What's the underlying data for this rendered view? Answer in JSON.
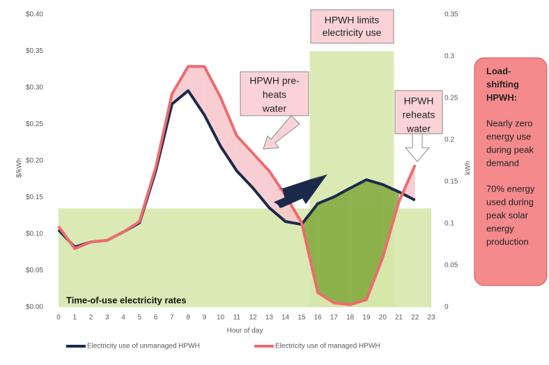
{
  "chart_data": {
    "type": "line",
    "x": [
      0,
      1,
      2,
      3,
      4,
      5,
      6,
      7,
      8,
      9,
      10,
      11,
      12,
      13,
      14,
      15,
      16,
      17,
      18,
      19,
      20,
      21,
      22
    ],
    "xlabel": "Hour of day",
    "xlim": [
      0,
      23
    ],
    "xticks": [
      0,
      1,
      2,
      3,
      4,
      5,
      6,
      7,
      8,
      9,
      10,
      11,
      12,
      13,
      14,
      15,
      16,
      17,
      18,
      19,
      20,
      21,
      22,
      23
    ],
    "ylabel": "$/kWh",
    "ylim": [
      0,
      0.4
    ],
    "yticks": [
      {
        "value": 0,
        "label": "$0.00"
      },
      {
        "value": 0.05,
        "label": "$0.05"
      },
      {
        "value": 0.1,
        "label": "$0.10"
      },
      {
        "value": 0.15,
        "label": "$0.15"
      },
      {
        "value": 0.2,
        "label": "$0.20"
      },
      {
        "value": 0.25,
        "label": "$0.25"
      },
      {
        "value": 0.3,
        "label": "$0.30"
      },
      {
        "value": 0.35,
        "label": "$0.35"
      },
      {
        "value": 0.4,
        "label": "$0.40"
      }
    ],
    "y2label": "kWh",
    "y2lim": [
      0,
      0.35
    ],
    "y2ticks": [
      0,
      0.05,
      0.1,
      0.15,
      0.2,
      0.25,
      0.3,
      0.35
    ],
    "rates_label": "Time-of-use electricity rates",
    "rates_color": "#d5e6a8",
    "rates": [
      {
        "x": [
          0,
          23
        ],
        "value": 0.135
      },
      {
        "x": [
          15.5,
          20.7
        ],
        "value": 0.35
      }
    ],
    "series": [
      {
        "name": "Electricity use of unmanaged HPWH",
        "color": "#1b2a4a",
        "axis": "y2",
        "values": [
          0.0925,
          0.072,
          0.078,
          0.08,
          0.09,
          0.101,
          0.163,
          0.243,
          0.259,
          0.23,
          0.1925,
          0.163,
          0.1425,
          0.119,
          0.1025,
          0.099,
          0.124,
          0.132,
          0.1425,
          0.1525,
          0.1467,
          0.138,
          0.128
        ]
      },
      {
        "name": "Electricity use of managed HPWH",
        "color": "#ee6b6e",
        "axis": "y2",
        "values": [
          0.0967,
          0.07,
          0.078,
          0.08,
          0.09,
          0.1025,
          0.1675,
          0.255,
          0.288,
          0.288,
          0.251,
          0.205,
          0.184,
          0.163,
          0.134,
          0.101,
          0.0175,
          0.005,
          0.003,
          0.009,
          0.059,
          0.126,
          0.17
        ]
      }
    ],
    "annotations": [
      {
        "lines": [
          "HPWH limits",
          "electricity use"
        ]
      },
      {
        "lines": [
          "HPWH pre-",
          "heats",
          "water"
        ]
      },
      {
        "lines": [
          "HPWH",
          "reheats",
          "water"
        ]
      }
    ],
    "sidebar": {
      "title": [
        "Load-",
        "shifting",
        "HPWH:"
      ],
      "notes": [
        [
          "Nearly zero",
          "energy use",
          "during peak",
          "demand"
        ],
        [
          "70% energy",
          "used  during",
          "peak solar",
          "energy",
          "production"
        ]
      ]
    }
  }
}
